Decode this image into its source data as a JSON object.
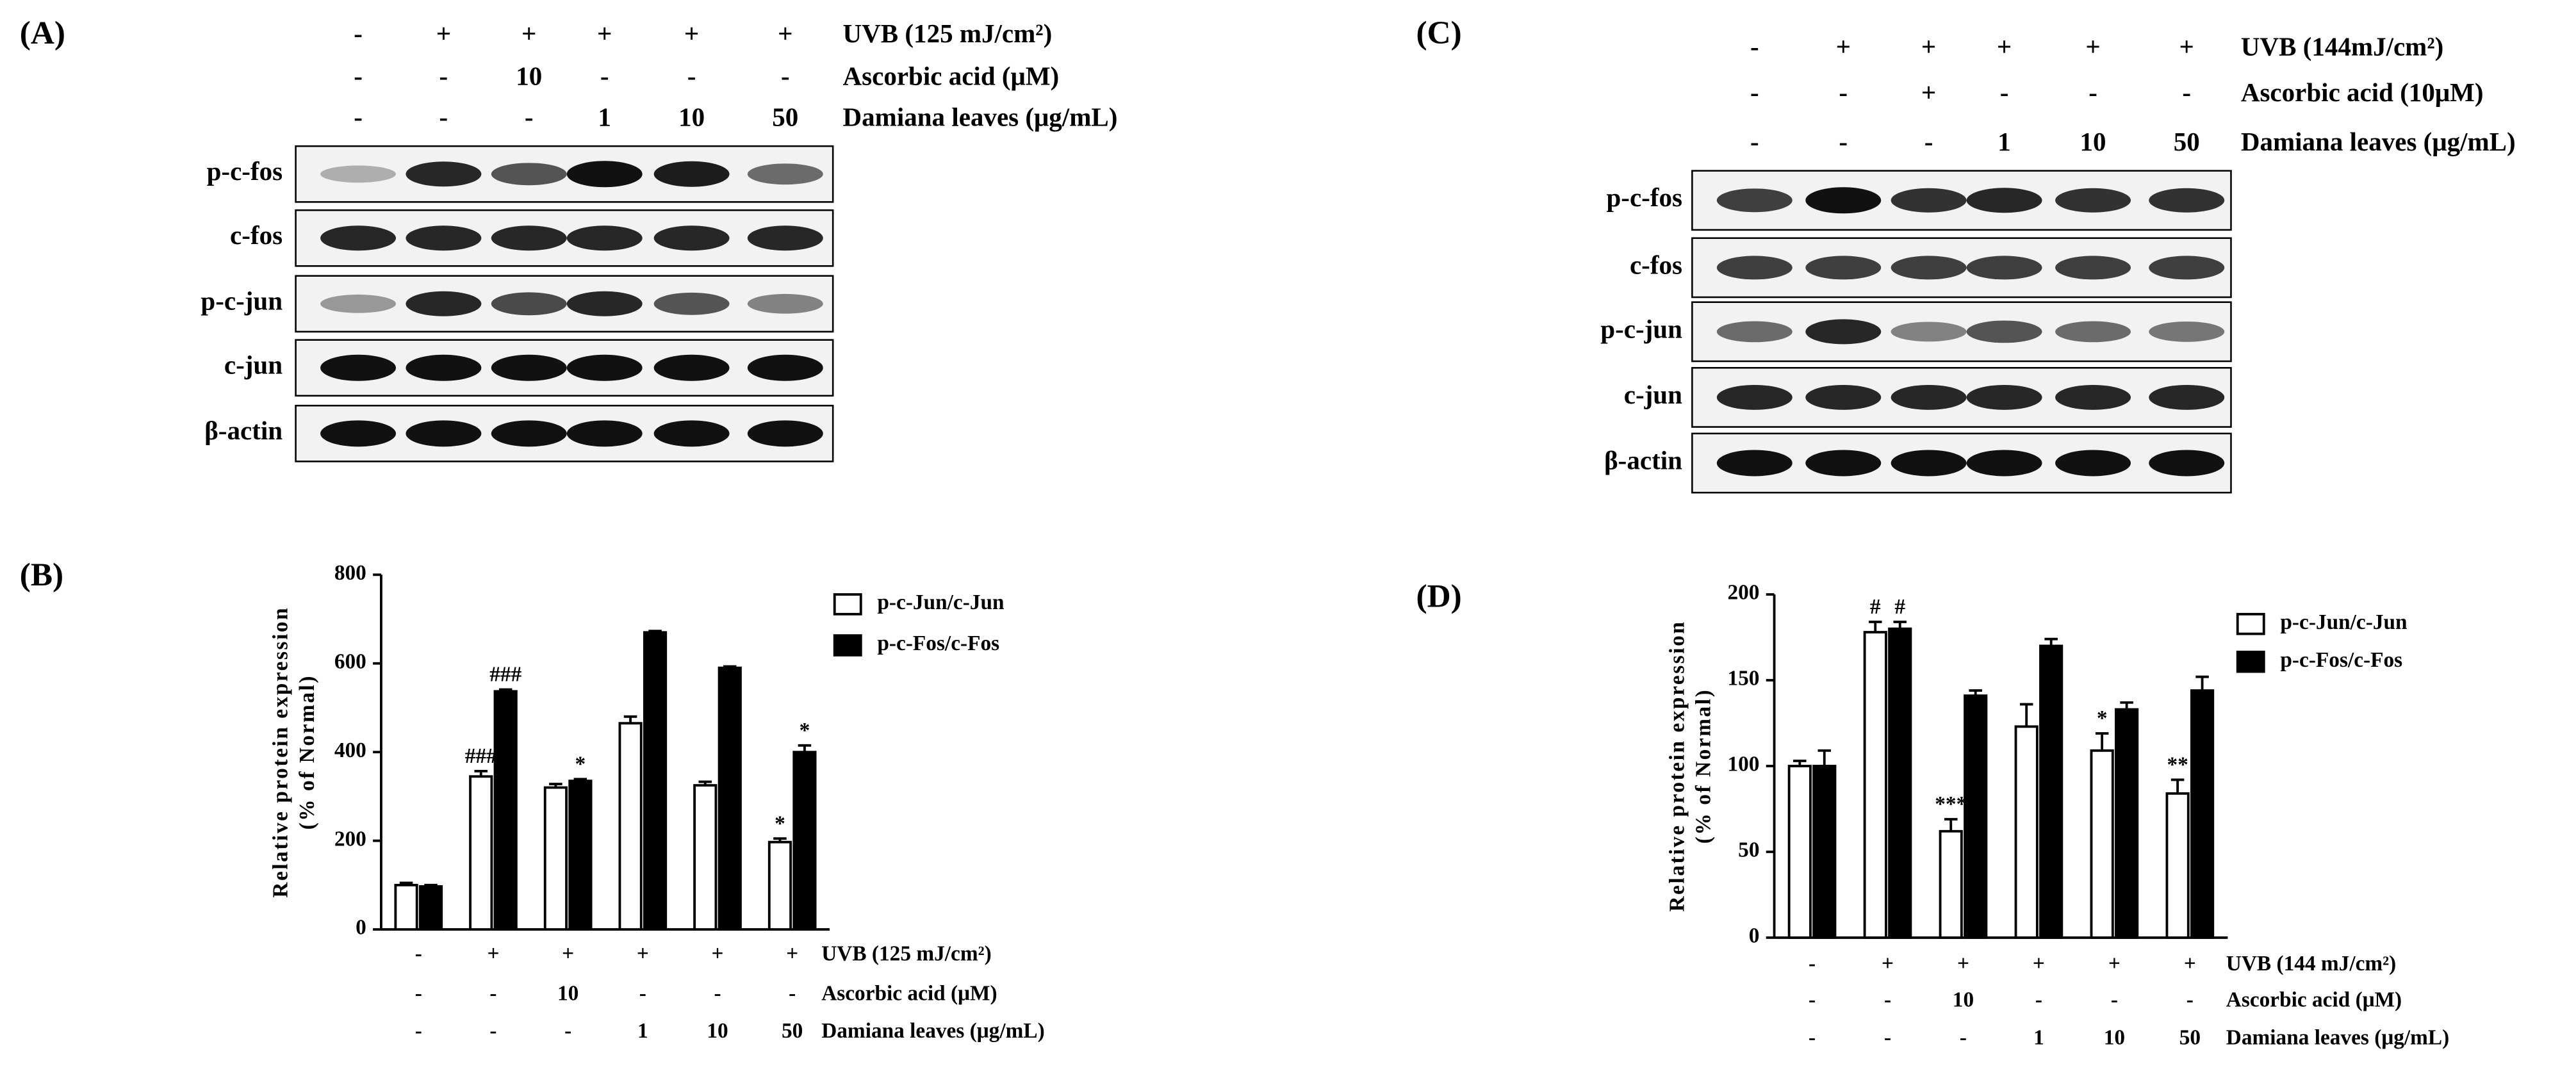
{
  "panels": [
    "(A)",
    "(B)",
    "(C)",
    "(D)"
  ],
  "blots": [
    {
      "treatments": [
        {
          "name": "UVB (125 mJ/cm²)",
          "labels": [
            "-",
            "+",
            "+",
            "+",
            "+",
            "+"
          ]
        },
        {
          "name": "Ascorbic acid (μM)",
          "labels": [
            "-",
            "-",
            "10",
            "-",
            "-",
            "-"
          ]
        },
        {
          "name": "Damiana leaves (μg/mL)",
          "labels": [
            "-",
            "-",
            "-",
            "1",
            "10",
            "50"
          ]
        }
      ],
      "proteins": [
        "p-c-fos",
        "c-fos",
        "p-c-jun",
        "c-jun",
        "β-actin"
      ]
    },
    {
      "treatments": [
        {
          "name": "UVB (144mJ/cm²)",
          "labels": [
            "-",
            "+",
            "+",
            "+",
            "+",
            "+"
          ]
        },
        {
          "name": "Ascorbic acid (10μM)",
          "labels": [
            "-",
            "-",
            "+",
            "-",
            "-",
            "-"
          ]
        },
        {
          "name": "Damiana leaves (μg/mL)",
          "labels": [
            "-",
            "-",
            "-",
            "1",
            "10",
            "50"
          ]
        }
      ],
      "proteins": [
        "p-c-fos",
        "c-fos",
        "p-c-jun",
        "c-jun",
        "β-actin"
      ]
    }
  ],
  "chart_data": [
    {
      "type": "bar",
      "ylabel": [
        "Relative protein expression",
        "(% of Normal)"
      ],
      "ylim": [
        0,
        800
      ],
      "yticks": [
        0,
        200,
        400,
        600,
        800
      ],
      "treatments": [
        {
          "name": "UVB (125 mJ/cm²)",
          "labels": [
            "-",
            "+",
            "+",
            "+",
            "+",
            "+"
          ]
        },
        {
          "name": "Ascorbic acid (μM)",
          "labels": [
            "-",
            "-",
            "10",
            "-",
            "-",
            "-"
          ]
        },
        {
          "name": "Damiana leaves (μg/mL)",
          "labels": [
            "-",
            "-",
            "-",
            "1",
            "10",
            "50"
          ]
        }
      ],
      "series": [
        {
          "name": "p-c-Jun/c-Jun",
          "color": "#ffffff",
          "values": [
            100,
            345,
            320,
            465,
            325,
            197
          ],
          "errors": [
            5,
            12,
            8,
            15,
            8,
            8
          ]
        },
        {
          "name": "p-c-Fos/c-Fos",
          "color": "#000000",
          "values": [
            97,
            537,
            335,
            670,
            590,
            400
          ],
          "errors": [
            3,
            4,
            4,
            3,
            3,
            15
          ]
        }
      ],
      "annotations": [
        {
          "text": "###",
          "series": 0,
          "index": 1
        },
        {
          "text": "###",
          "series": 1,
          "index": 1
        },
        {
          "text": "*",
          "series": 1,
          "index": 2
        },
        {
          "text": "*",
          "series": 0,
          "index": 5
        },
        {
          "text": "*",
          "series": 1,
          "index": 5
        }
      ]
    },
    {
      "type": "bar",
      "ylabel": [
        "Relative protein expression",
        "(% of Normal)"
      ],
      "ylim": [
        0,
        200
      ],
      "yticks": [
        0,
        50,
        100,
        150,
        200
      ],
      "treatments": [
        {
          "name": "UVB (144 mJ/cm²)",
          "labels": [
            "-",
            "+",
            "+",
            "+",
            "+",
            "+"
          ]
        },
        {
          "name": "Ascorbic acid (μM)",
          "labels": [
            "-",
            "-",
            "10",
            "-",
            "-",
            "-"
          ]
        },
        {
          "name": "Damiana leaves (μg/mL)",
          "labels": [
            "-",
            "-",
            "-",
            "1",
            "10",
            "50"
          ]
        }
      ],
      "series": [
        {
          "name": "p-c-Jun/c-Jun",
          "color": "#ffffff",
          "values": [
            100,
            178,
            62,
            123,
            109,
            84
          ],
          "errors": [
            3,
            6,
            7,
            13,
            10,
            8
          ]
        },
        {
          "name": "p-c-Fos/c-Fos",
          "color": "#000000",
          "values": [
            100,
            180,
            141,
            170,
            133,
            144
          ],
          "errors": [
            9,
            4,
            3,
            4,
            4,
            8
          ]
        }
      ],
      "annotations": [
        {
          "text": "#",
          "series": 0,
          "index": 1
        },
        {
          "text": "#",
          "series": 1,
          "index": 1
        },
        {
          "text": "***",
          "series": 0,
          "index": 2
        },
        {
          "text": "*",
          "series": 0,
          "index": 4
        },
        {
          "text": "**",
          "series": 0,
          "index": 5
        }
      ]
    }
  ]
}
